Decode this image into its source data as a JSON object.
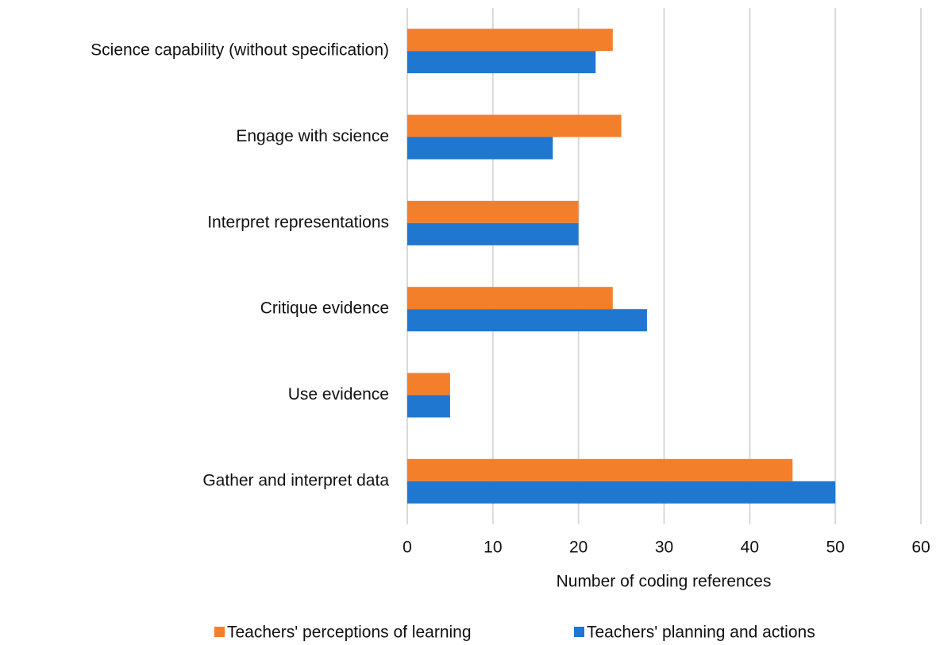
{
  "chart_data": {
    "type": "hbar",
    "categories": [
      "Science capability (without specification)",
      "Engage with science",
      "Interpret representations",
      "Critique evidence",
      "Use evidence",
      "Gather and interpret data"
    ],
    "series": [
      {
        "name": "Teachers' perceptions of learning",
        "color": "#f47f2b",
        "values": [
          24,
          25,
          20,
          24,
          5,
          45
        ]
      },
      {
        "name": "Teachers' planning and actions",
        "color": "#1f77d0",
        "values": [
          22,
          17,
          20,
          28,
          5,
          50
        ]
      }
    ],
    "xlabel": "Number of coding references",
    "xlim": [
      0,
      60
    ],
    "xticks": [
      0,
      10,
      20,
      30,
      40,
      50,
      60
    ],
    "grid": true,
    "legend": "bottom"
  }
}
